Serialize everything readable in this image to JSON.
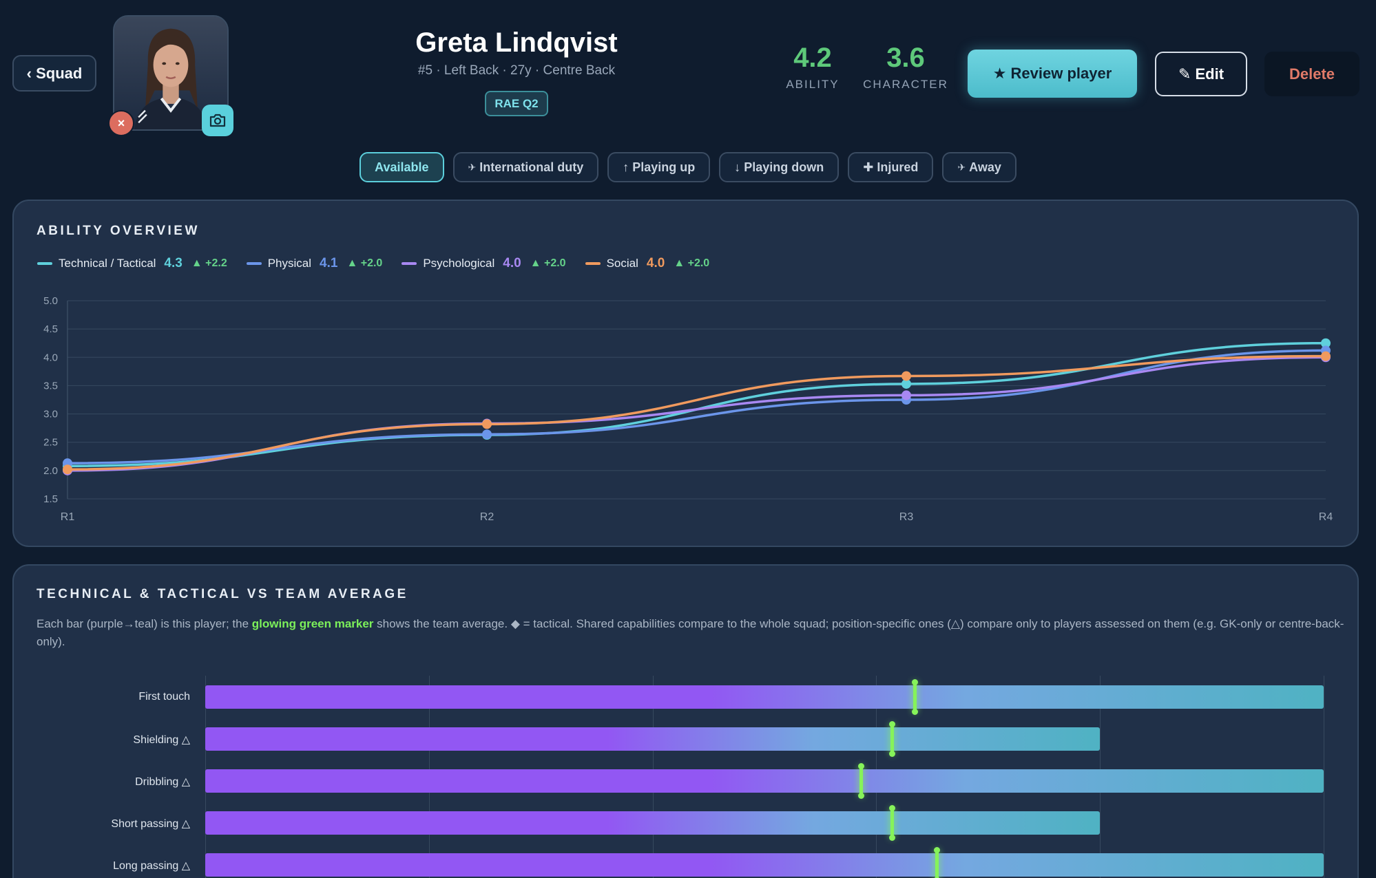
{
  "header": {
    "back_label": "‹ Squad",
    "remove_glyph": "×",
    "name": "Greta Lindqvist",
    "meta": "#5 · Left Back · 27y · Centre Back",
    "badge": "RAE Q2",
    "ability_value": "4.2",
    "ability_label": "ABILITY",
    "character_value": "3.6",
    "character_label": "CHARACTER",
    "review_label": "★ Review player",
    "edit_label": "✎ Edit",
    "delete_label": "Delete"
  },
  "statuses": [
    {
      "label": "Available",
      "glyph": "",
      "active": true
    },
    {
      "label": "International duty",
      "glyph": "✈",
      "active": false
    },
    {
      "label": "Playing up",
      "glyph": "↑",
      "active": false
    },
    {
      "label": "Playing down",
      "glyph": "↓",
      "active": false
    },
    {
      "label": "Injured",
      "glyph": "✚",
      "active": false
    },
    {
      "label": "Away",
      "glyph": "✈",
      "active": false
    }
  ],
  "ability_panel": {
    "title": "ABILITY OVERVIEW"
  },
  "tech_panel": {
    "title": "TECHNICAL & TACTICAL VS TEAM AVERAGE",
    "desc_before": "Each bar (purple→teal) is this player; the ",
    "desc_highlight": "glowing green marker",
    "desc_after": " shows the team average. ◆ = tactical. Shared capabilities compare to the whole squad; position-specific ones (△) compare only to players assessed on them (e.g. GK-only or centre-back-only)."
  },
  "colors": {
    "technical": "#5fd0dc",
    "physical": "#6b95ea",
    "psychological": "#a888f2",
    "social": "#f09a5e",
    "accent_green": "#5ec97a",
    "marker": "#86f35a"
  },
  "chart_data": [
    {
      "type": "line",
      "x": [
        "R1",
        "R2",
        "R3",
        "R4"
      ],
      "ylim": [
        1.5,
        5.0
      ],
      "yticks": [
        "5.0",
        "4.5",
        "4.0",
        "3.5",
        "3.0",
        "2.5",
        "2.0",
        "1.5"
      ],
      "grid": true,
      "legend": "top-left",
      "series": [
        {
          "name": "Technical / Tactical",
          "key": "technical",
          "current": "4.3",
          "delta": "▲ +2.2",
          "values": [
            2.08,
            2.63,
            3.53,
            4.25
          ]
        },
        {
          "name": "Physical",
          "key": "physical",
          "current": "4.1",
          "delta": "▲ +2.0",
          "values": [
            2.13,
            2.64,
            3.25,
            4.12
          ]
        },
        {
          "name": "Psychological",
          "key": "psychological",
          "current": "4.0",
          "delta": "▲ +2.0",
          "values": [
            2.0,
            2.83,
            3.33,
            4.0
          ]
        },
        {
          "name": "Social",
          "key": "social",
          "current": "4.0",
          "delta": "▲ +2.0",
          "values": [
            2.02,
            2.82,
            3.67,
            4.02
          ]
        }
      ]
    },
    {
      "type": "bar",
      "orientation": "horizontal",
      "xlim": [
        0,
        5
      ],
      "categories": [
        "First touch",
        "Shielding △",
        "Dribbling △",
        "Short passing △",
        "Long passing △"
      ],
      "values": [
        5.0,
        4.0,
        5.0,
        4.0,
        5.0
      ],
      "team_average": [
        3.17,
        3.07,
        2.93,
        3.07,
        3.27
      ]
    }
  ]
}
